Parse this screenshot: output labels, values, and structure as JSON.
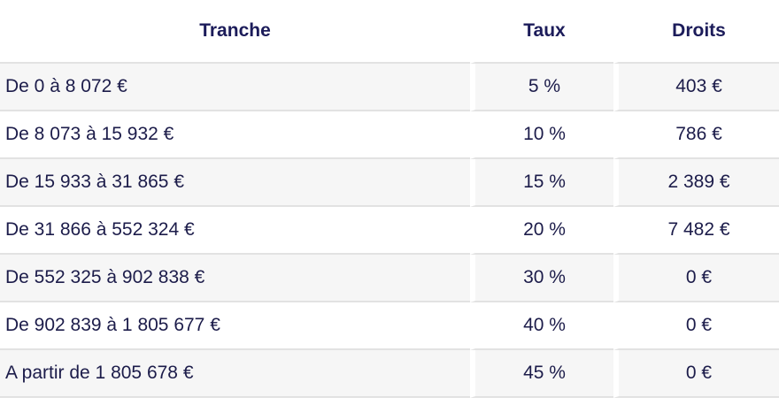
{
  "table": {
    "header": [
      "Tranche",
      "Taux",
      "Droits"
    ],
    "rows": [
      [
        "De 0 à 8 072 €",
        "5 %",
        "403 €"
      ],
      [
        "De 8 073 à 15 932 €",
        "10 %",
        "786 €"
      ],
      [
        "De 15 933 à 31 865 €",
        "15 %",
        "2 389 €"
      ],
      [
        "De 31 866 à 552 324 €",
        "20 %",
        "7 482 €"
      ],
      [
        "De 552 325 à 902 838 €",
        "30 %",
        "0 €"
      ],
      [
        "De 902 839 à 1 805 677 €",
        "40 %",
        "0 €"
      ],
      [
        "A partir de 1 805 678 €",
        "45 %",
        "0 €"
      ]
    ]
  }
}
